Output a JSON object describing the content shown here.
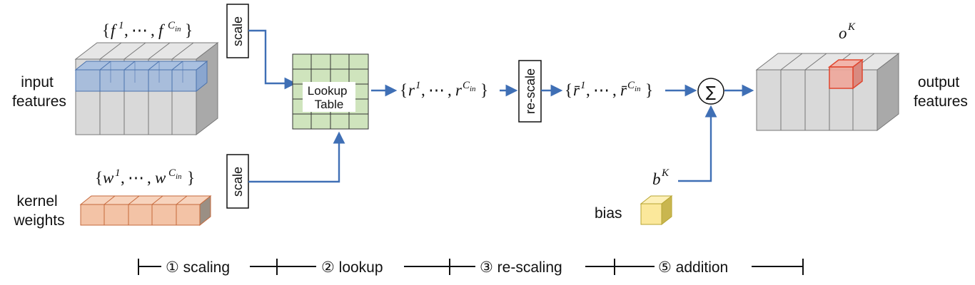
{
  "labels": {
    "input_features": [
      "input",
      "features"
    ],
    "kernel_weights": [
      "kernel",
      "weights"
    ],
    "output_features": [
      "output",
      "features"
    ],
    "bias": "bias"
  },
  "boxes": {
    "scale_top": "scale",
    "scale_bottom": "scale",
    "rescale": "re-scale",
    "lookup_table": [
      "Lookup",
      "Table"
    ],
    "sum_symbol": "∑"
  },
  "math": {
    "f_set": {
      "var": "f",
      "first_sup": "1",
      "last_sup": "C",
      "last_sub": "in"
    },
    "w_set": {
      "var": "w",
      "first_sup": "1",
      "last_sup": "C",
      "last_sub": "in"
    },
    "r_set": {
      "var": "r",
      "first_sup": "1",
      "last_sup": "C",
      "last_sub": "in"
    },
    "rbar_set": {
      "var": "r̄",
      "first_sup": "1",
      "last_sup": "C",
      "last_sub": "in"
    },
    "ellipsis": "⋯",
    "open_brace": "{",
    "close_brace": "}",
    "comma": ",",
    "output": {
      "var": "o",
      "sup": "K"
    },
    "bias": {
      "var": "b",
      "sup": "K"
    }
  },
  "stages": [
    "① scaling",
    "② lookup",
    "③ re-scaling",
    "⑤ addition"
  ],
  "colors": {
    "arrow": "#3f6fb5",
    "input_highlight": "#7f9fcc",
    "kernel": "#f3c3a6",
    "lookup_table": "#cfe4bd",
    "bias_cube": "#fbe89b",
    "output_highlight": "#e4574a",
    "gray_cube": "#d9d9d9"
  }
}
